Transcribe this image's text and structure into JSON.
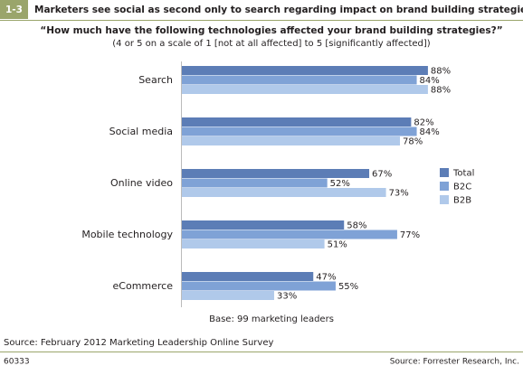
{
  "chart_data": {
    "type": "bar",
    "orientation": "horizontal",
    "figure_label": "1-3",
    "title": "Marketers see social as second only to search regarding impact on brand building strategies",
    "subtitle": "“How much have the following technologies affected your brand building strategies?”",
    "note": "(4 or 5 on a scale of 1 [not at all affected] to 5 [significantly affected])",
    "base_note": "Base: 99 marketing leaders",
    "source": "Source: February 2012 Marketing Leadership Online Survey",
    "footer_id": "60333",
    "credit": "Source: Forrester Research, Inc.",
    "categories": [
      "Search",
      "Social media",
      "Online video",
      "Mobile technology",
      "eCommerce"
    ],
    "series": [
      {
        "name": "Total",
        "color": "#5c7db6",
        "values": [
          88,
          82,
          67,
          58,
          47
        ],
        "value_labels": [
          "88%",
          "82%",
          "67%",
          "58%",
          "47%"
        ]
      },
      {
        "name": "B2C",
        "color": "#7fa2d6",
        "values": [
          84,
          84,
          52,
          77,
          55
        ],
        "value_labels": [
          "84%",
          "84%",
          "52%",
          "77%",
          "55%"
        ]
      },
      {
        "name": "B2B",
        "color": "#b0c9ea",
        "values": [
          88,
          78,
          73,
          51,
          33
        ],
        "value_labels": [
          "88%",
          "78%",
          "73%",
          "51%",
          "33%"
        ]
      }
    ],
    "xlim": [
      0,
      100
    ]
  }
}
